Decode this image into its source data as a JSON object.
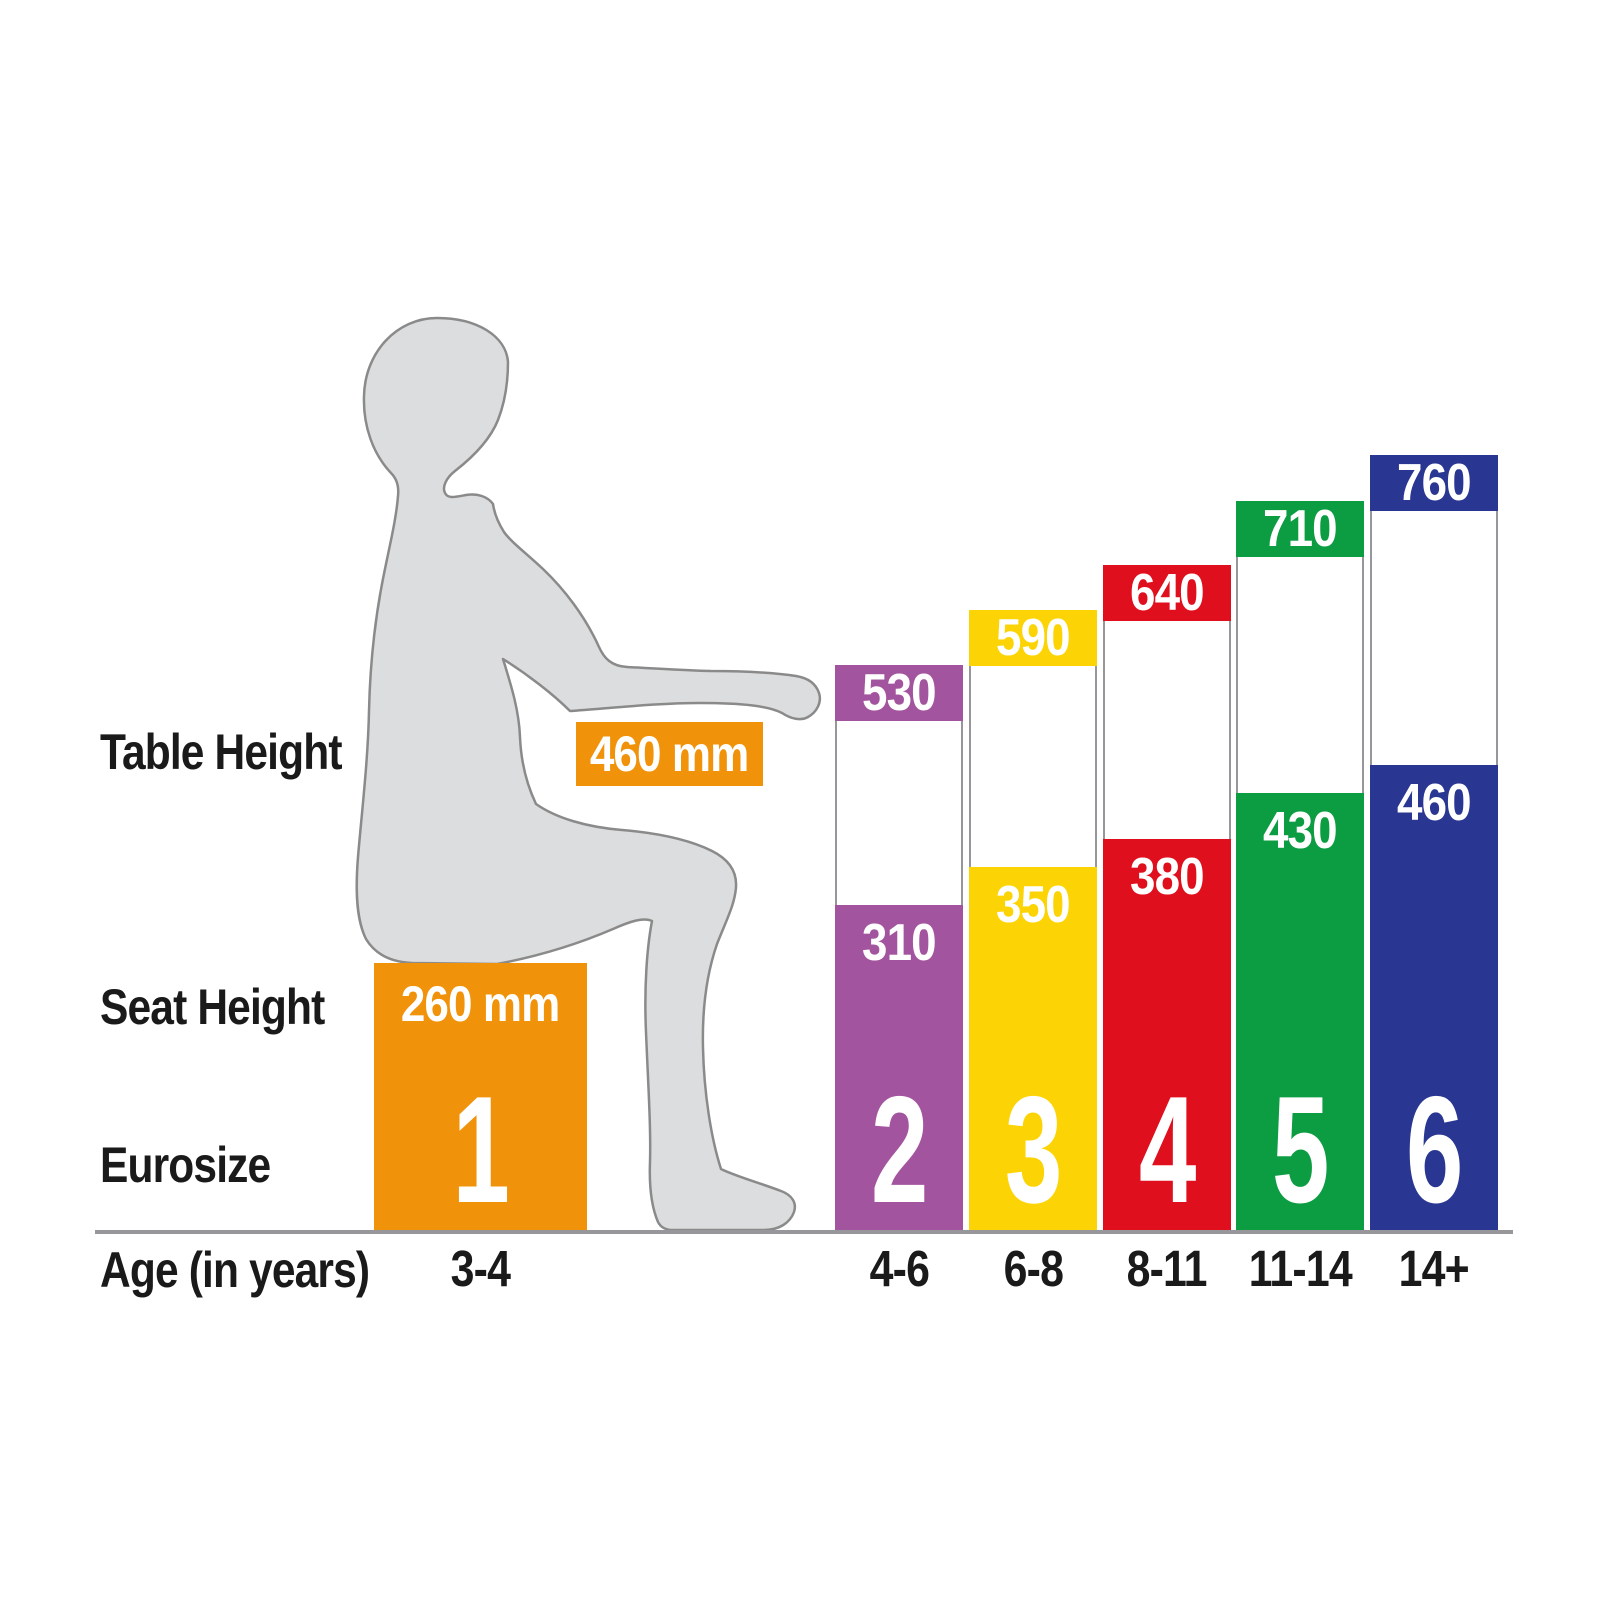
{
  "labels": {
    "table_height": "Table Height",
    "seat_height": "Seat Height",
    "eurosize": "Eurosize",
    "age": "Age (in years)"
  },
  "icons": {
    "seated_child": "seated-child-silhouette"
  },
  "colors": {
    "orange": "#f0930a",
    "purple": "#a3549e",
    "yellow": "#fcd405",
    "red": "#df0f1e",
    "green": "#0c9c42",
    "blue": "#293692",
    "silhouette_fill": "#dcddde",
    "silhouette_outline": "#8a8a8a",
    "axis_gray": "#97979b",
    "text_black": "#1a1a1a",
    "text_white": "#ffffff"
  },
  "chart_data": {
    "type": "bar",
    "value_unit": "mm",
    "x_axis_label": "Age (in years)",
    "series": [
      "Table Height",
      "Seat Height"
    ],
    "columns": [
      {
        "eurosize": "1",
        "age": "3-4",
        "table_height_mm": 460,
        "seat_height_mm": 260,
        "table_height_label": "460 mm",
        "seat_height_label": "260 mm",
        "color": "#f0930a"
      },
      {
        "eurosize": "2",
        "age": "4-6",
        "table_height_mm": 530,
        "seat_height_mm": 310,
        "color": "#a3549e"
      },
      {
        "eurosize": "3",
        "age": "6-8",
        "table_height_mm": 590,
        "seat_height_mm": 350,
        "color": "#fcd405"
      },
      {
        "eurosize": "4",
        "age": "8-11",
        "table_height_mm": 640,
        "seat_height_mm": 380,
        "color": "#df0f1e"
      },
      {
        "eurosize": "5",
        "age": "11-14",
        "table_height_mm": 710,
        "seat_height_mm": 430,
        "color": "#0c9c42"
      },
      {
        "eurosize": "6",
        "age": "14+",
        "table_height_mm": 760,
        "seat_height_mm": 460,
        "color": "#293692"
      }
    ]
  }
}
